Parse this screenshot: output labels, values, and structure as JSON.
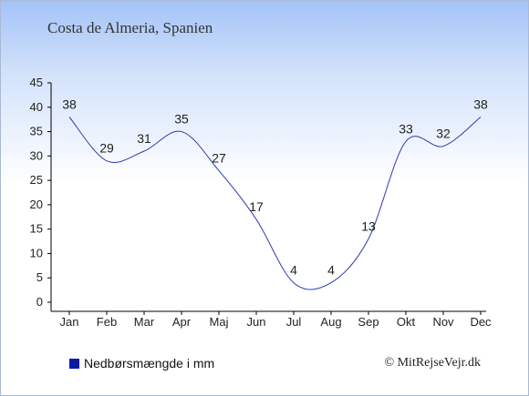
{
  "page": {
    "title": "Costa de Almeria, Spanien",
    "credit": "© MitRejseVejr.dk"
  },
  "colors": {
    "line": "#2f3db0",
    "legend_swatch": "#0a1aa8",
    "axis": "#000000",
    "label_text": "#222222"
  },
  "chart_data": {
    "type": "line",
    "categories": [
      "Jan",
      "Feb",
      "Mar",
      "Apr",
      "Maj",
      "Jun",
      "Jul",
      "Aug",
      "Sep",
      "Okt",
      "Nov",
      "Dec"
    ],
    "series": [
      {
        "name": "Nedbørsmængde i mm",
        "values": [
          38,
          29,
          31,
          35,
          27,
          17,
          4,
          4,
          13,
          33,
          32,
          38
        ]
      }
    ],
    "ylim": [
      0,
      45
    ],
    "yticks": [
      0,
      5,
      10,
      15,
      20,
      25,
      30,
      35,
      40,
      45
    ],
    "grid": false,
    "legend_position": "bottom-left",
    "data_labels": true
  }
}
